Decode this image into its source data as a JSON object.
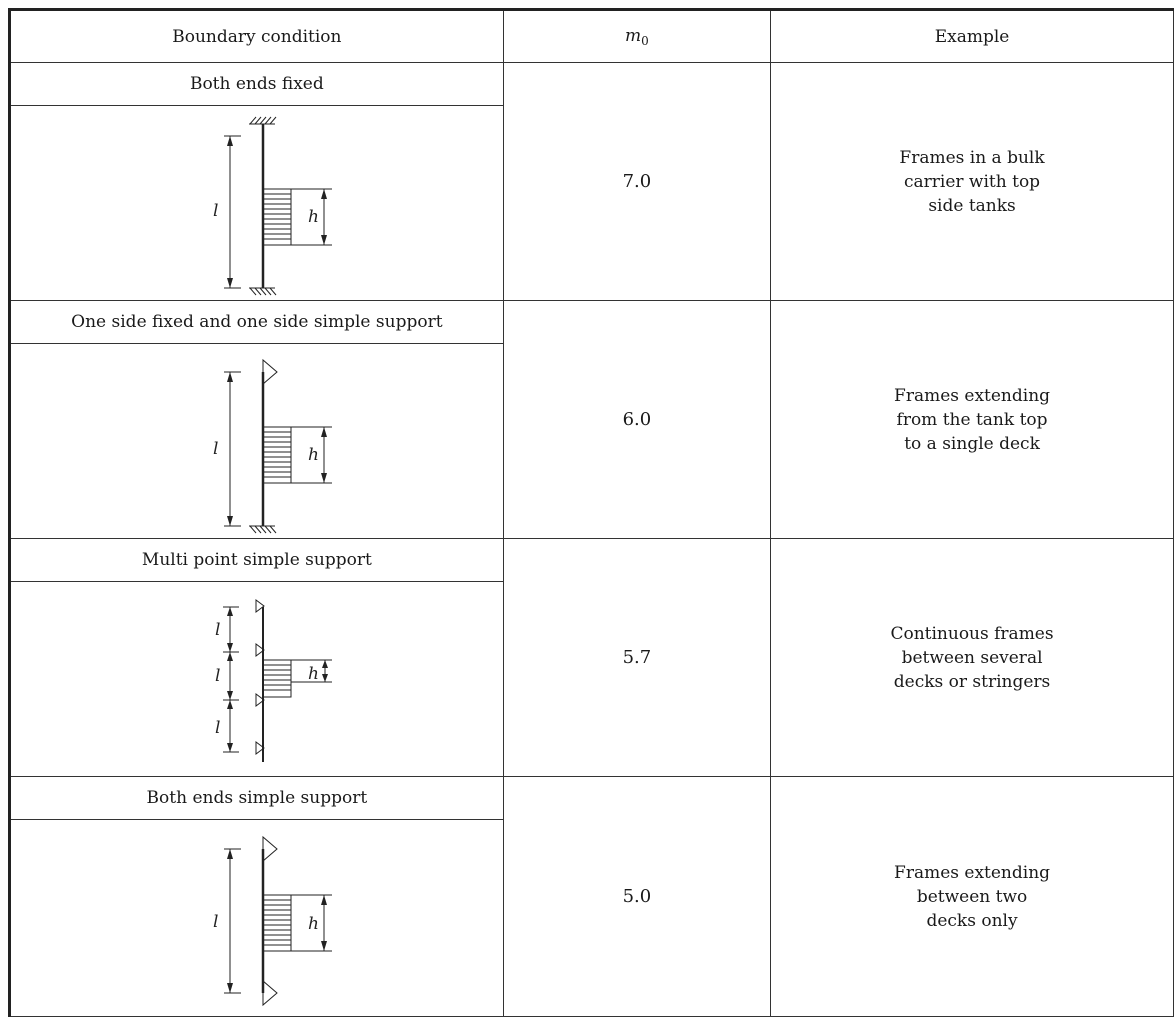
{
  "header": {
    "col1": "Boundary condition",
    "col2_symbol": "m",
    "col2_subscript": "0",
    "col3": "Example"
  },
  "rows": [
    {
      "condition": "Both ends fixed",
      "m0": "7.0",
      "example": [
        "Frames in a bulk",
        "carrier with top",
        "side tanks"
      ],
      "diagram": {
        "span_label": "l",
        "load_label": "h",
        "top": "fixed",
        "bottom": "fixed"
      }
    },
    {
      "condition": "One side fixed and one side simple support",
      "m0": "6.0",
      "example": [
        "Frames extending",
        "from the tank top",
        "to a single deck"
      ],
      "diagram": {
        "span_label": "l",
        "load_label": "h",
        "top": "simple",
        "bottom": "fixed"
      }
    },
    {
      "condition": "Multi point simple support",
      "m0": "5.7",
      "example": [
        "Continuous frames",
        "between several",
        "decks or stringers"
      ],
      "diagram": {
        "span_label": "l",
        "load_label": "h",
        "top": "simple",
        "bottom": "simple"
      }
    },
    {
      "condition": "Both ends simple support",
      "m0": "5.0",
      "example": [
        "Frames extending",
        "between two",
        "decks only"
      ],
      "diagram": {
        "span_label": "l",
        "load_label": "h",
        "top": "simple",
        "bottom": "simple"
      }
    }
  ]
}
